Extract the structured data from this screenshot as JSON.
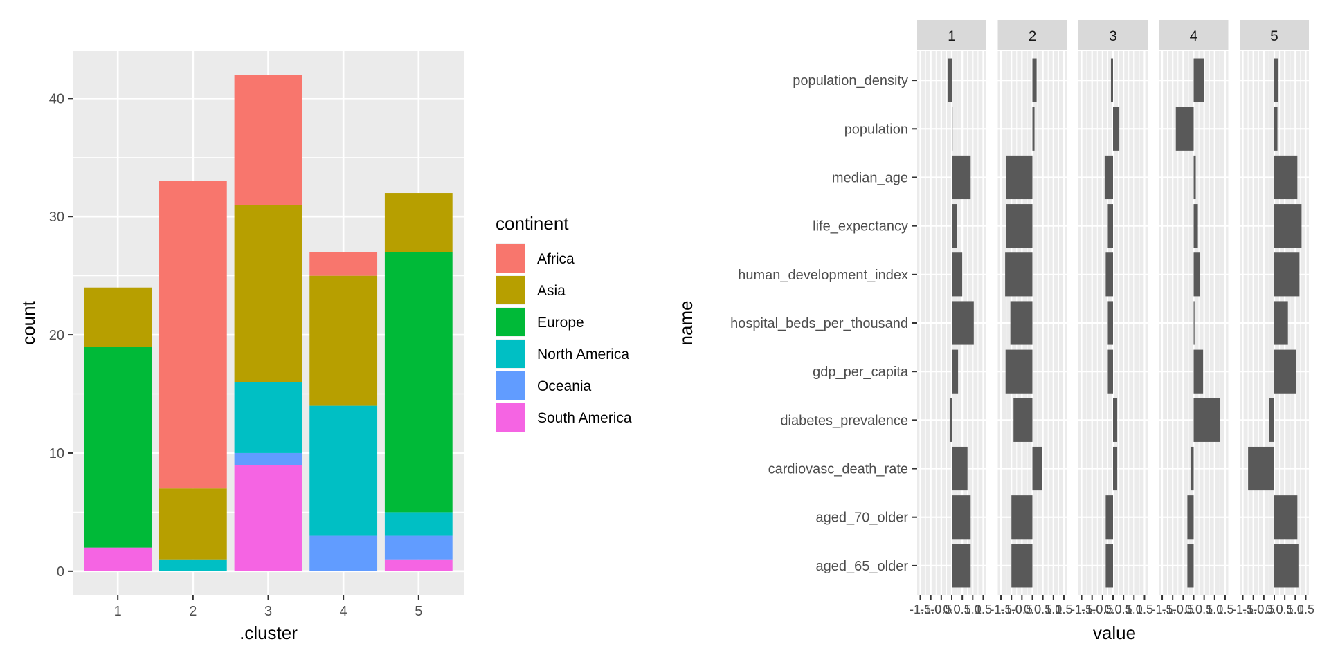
{
  "chart_data": [
    {
      "type": "bar",
      "stacked": true,
      "xlabel": ".cluster",
      "ylabel": "count",
      "categories": [
        "1",
        "2",
        "3",
        "4",
        "5"
      ],
      "ylim": [
        -2,
        44
      ],
      "yticks": [
        0,
        10,
        20,
        30,
        40
      ],
      "grid": true,
      "legend": {
        "title": "continent",
        "placement": "right",
        "entries": [
          "Africa",
          "Asia",
          "Europe",
          "North America",
          "Oceania",
          "South America"
        ]
      },
      "series": [
        {
          "name": "Africa",
          "color": "#F8766D",
          "values": [
            0,
            26,
            11,
            2,
            0
          ]
        },
        {
          "name": "Asia",
          "color": "#B79F00",
          "values": [
            5,
            6,
            15,
            11,
            5
          ]
        },
        {
          "name": "Europe",
          "color": "#00BA38",
          "values": [
            17,
            0,
            0,
            0,
            22
          ]
        },
        {
          "name": "North America",
          "color": "#00BFC4",
          "values": [
            0,
            1,
            6,
            11,
            2
          ]
        },
        {
          "name": "Oceania",
          "color": "#619CFF",
          "values": [
            0,
            0,
            1,
            3,
            2
          ]
        },
        {
          "name": "South America",
          "color": "#F564E3",
          "values": [
            2,
            0,
            9,
            0,
            1
          ]
        }
      ]
    },
    {
      "type": "bar",
      "orientation": "horizontal",
      "facets": [
        "1",
        "2",
        "3",
        "4",
        "5"
      ],
      "xlabel": "value",
      "ylabel": "name",
      "xlim": [
        -1.5,
        1.5
      ],
      "xticks": [
        -1.5,
        -1.0,
        -0.5,
        0.0,
        0.5,
        1.0,
        1.5
      ],
      "xtick_labels": [
        "-1.5",
        "-1.0",
        "-0.5",
        "0.0",
        "0.5",
        "1.0",
        "1.5"
      ],
      "bar_color": "#595959",
      "categories": [
        "population_density",
        "population",
        "median_age",
        "life_expectancy",
        "human_development_index",
        "hospital_beds_per_thousand",
        "gdp_per_capita",
        "diabetes_prevalence",
        "cardiovasc_death_rate",
        "aged_70_older",
        "aged_65_older"
      ],
      "values": [
        [
          -0.2,
          0.02,
          0.9,
          0.25,
          0.5,
          1.05,
          0.3,
          -0.1,
          0.75,
          0.9,
          0.9
        ],
        [
          0.2,
          0.1,
          -1.25,
          -1.25,
          -1.3,
          -1.05,
          -1.28,
          -0.9,
          0.45,
          -1.0,
          -1.0
        ],
        [
          -0.1,
          0.3,
          -0.4,
          -0.25,
          -0.35,
          -0.25,
          -0.25,
          0.2,
          0.2,
          -0.35,
          -0.35
        ],
        [
          0.5,
          -0.85,
          0.1,
          0.2,
          0.3,
          0.02,
          0.45,
          1.25,
          -0.15,
          -0.3,
          -0.3
        ],
        [
          0.2,
          0.15,
          1.1,
          1.3,
          1.2,
          0.65,
          1.05,
          -0.25,
          -1.25,
          1.1,
          1.15
        ]
      ]
    }
  ]
}
